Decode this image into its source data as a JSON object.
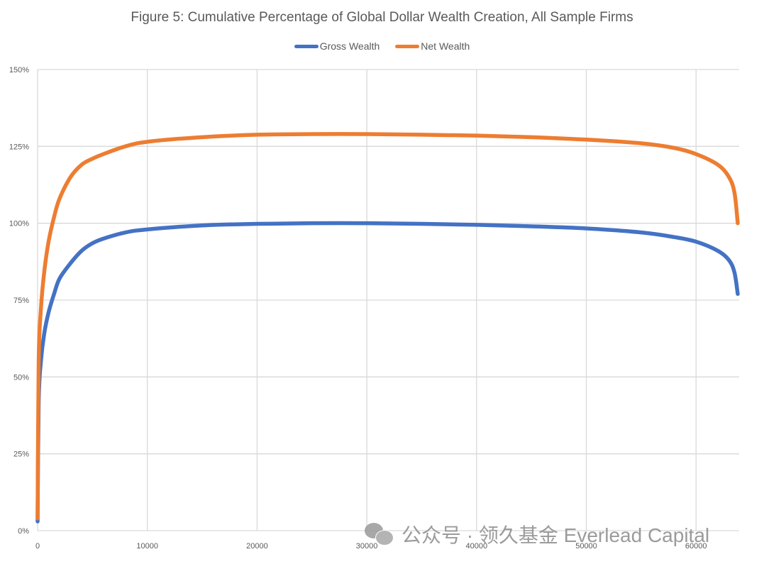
{
  "title": "Figure 5: Cumulative Percentage of Global Dollar Wealth Creation, All Sample Firms",
  "legend": [
    {
      "label": "Gross Wealth",
      "color": "#4472C4"
    },
    {
      "label": "Net Wealth",
      "color": "#ED7D31"
    }
  ],
  "watermark": "公众号 · 领久基金 Everlead Capital",
  "chart_data": {
    "type": "line",
    "title": "Figure 5: Cumulative Percentage of Global Dollar Wealth Creation, All Sample Firms",
    "xlabel": "",
    "ylabel": "",
    "xlim": [
      0,
      64000
    ],
    "ylim": [
      0,
      1.5
    ],
    "x_ticks": [
      0,
      10000,
      20000,
      30000,
      40000,
      50000,
      60000
    ],
    "x_tick_labels": [
      "0",
      "10000",
      "20000",
      "30000",
      "40000",
      "50000",
      "60000"
    ],
    "y_ticks": [
      0,
      0.25,
      0.5,
      0.75,
      1.0,
      1.25,
      1.5
    ],
    "y_tick_labels": [
      "0%",
      "25%",
      "50%",
      "75%",
      "100%",
      "125%",
      "150%"
    ],
    "grid": true,
    "legend_position": "top",
    "series": [
      {
        "name": "Gross Wealth",
        "color": "#4472C4",
        "x": [
          0,
          100,
          300,
          600,
          1000,
          1500,
          2000,
          3000,
          4000,
          5000,
          6000,
          8000,
          10000,
          15000,
          20000,
          25000,
          30000,
          35000,
          40000,
          45000,
          50000,
          55000,
          58000,
          60000,
          62000,
          63000,
          63500,
          63800
        ],
        "values": [
          0.03,
          0.42,
          0.55,
          0.64,
          0.71,
          0.77,
          0.82,
          0.87,
          0.91,
          0.935,
          0.95,
          0.97,
          0.98,
          0.993,
          0.998,
          1.0,
          1.0,
          0.998,
          0.995,
          0.99,
          0.983,
          0.97,
          0.955,
          0.94,
          0.91,
          0.88,
          0.84,
          0.77
        ]
      },
      {
        "name": "Net Wealth",
        "color": "#ED7D31",
        "x": [
          0,
          100,
          300,
          600,
          1000,
          1500,
          2000,
          3000,
          4000,
          5000,
          6000,
          8000,
          10000,
          15000,
          20000,
          25000,
          30000,
          35000,
          40000,
          45000,
          50000,
          55000,
          58000,
          60000,
          62000,
          63000,
          63500,
          63800
        ],
        "values": [
          0.04,
          0.55,
          0.72,
          0.84,
          0.94,
          1.02,
          1.08,
          1.15,
          1.19,
          1.21,
          1.225,
          1.25,
          1.265,
          1.28,
          1.288,
          1.29,
          1.29,
          1.288,
          1.285,
          1.28,
          1.272,
          1.26,
          1.245,
          1.225,
          1.19,
          1.15,
          1.1,
          1.0
        ]
      }
    ]
  }
}
